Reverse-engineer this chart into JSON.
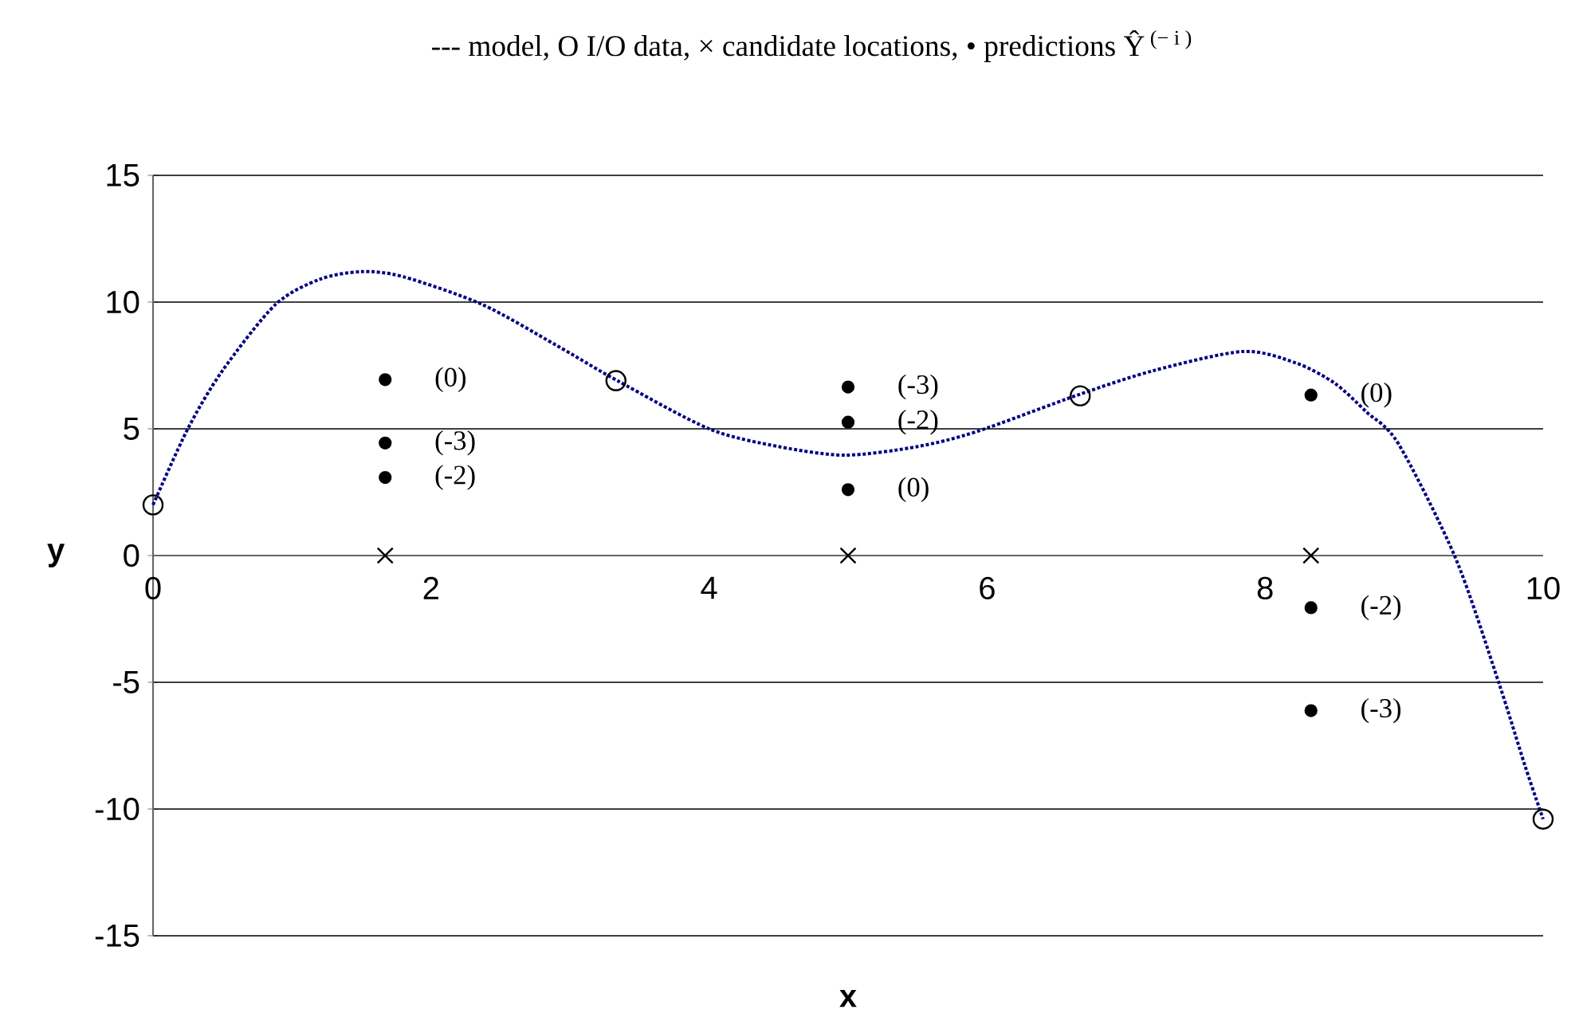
{
  "chart_data": {
    "type": "scatter",
    "title": "---  model,   O  I/O data,    ×  candidate locations,    •  predictions Ŷ$^{ (− i )}$",
    "xlabel": "x",
    "ylabel": "y",
    "xlim": [
      0,
      10
    ],
    "ylim": [
      -15,
      15
    ],
    "xticks": [
      0,
      2,
      4,
      6,
      8,
      10
    ],
    "yticks": [
      -15,
      -10,
      -5,
      0,
      5,
      10,
      15
    ],
    "grid": "y",
    "series": [
      {
        "type": "line",
        "color": "#000080",
        "line_style": "dotted",
        "marker": "none",
        "x": [
          0,
          0.25,
          0.5,
          0.88,
          1.2,
          1.5,
          1.8,
          2.37,
          2.9,
          3.34,
          4.0,
          4.5,
          4.98,
          5.5,
          5.93,
          6.66,
          7.2,
          7.84,
          8.22,
          8.5,
          8.73,
          8.96,
          9.37,
          9.68,
          9.87,
          10
        ],
        "values": [
          2,
          5,
          7.3,
          9.9,
          10.9,
          11.2,
          11.0,
          9.9,
          8.3,
          6.9,
          5.0,
          4.3,
          3.96,
          4.3,
          4.9,
          6.35,
          7.3,
          8.05,
          7.6,
          6.8,
          5.66,
          4.4,
          -0.1,
          -5.0,
          -8.3,
          -10.4
        ]
      },
      {
        "color": "#000000",
        "marker": "circle",
        "x": [
          0,
          3.33,
          6.67,
          10
        ],
        "values": [
          2,
          6.9,
          6.3,
          -10.4
        ]
      },
      {
        "color": "#000000",
        "marker": "cross",
        "x": [
          1.67,
          5,
          8.33
        ],
        "values": [
          0,
          0,
          0
        ]
      },
      {
        "color": "#000000",
        "marker": "dot",
        "x": [
          1.67,
          1.67,
          1.67,
          5,
          5,
          5,
          8.33,
          8.33,
          8.33
        ],
        "values": [
          6.94,
          4.44,
          3.08,
          6.65,
          5.26,
          2.6,
          6.33,
          -2.06,
          -6.12
        ]
      }
    ],
    "annotations": [
      {
        "text": "(0)",
        "x": 1.67,
        "y": 6.94
      },
      {
        "text": "(-3)",
        "x": 1.67,
        "y": 4.44
      },
      {
        "text": "(-2)",
        "x": 1.67,
        "y": 3.08
      },
      {
        "text": "(-3)",
        "x": 5,
        "y": 6.65
      },
      {
        "text": "(-2)",
        "x": 5,
        "y": 5.26
      },
      {
        "text": "(0)",
        "x": 5,
        "y": 2.6
      },
      {
        "text": "(0)",
        "x": 8.33,
        "y": 6.33
      },
      {
        "text": "(-2)",
        "x": 8.33,
        "y": -2.06
      },
      {
        "text": "(-3)",
        "x": 8.33,
        "y": -6.12
      }
    ]
  }
}
